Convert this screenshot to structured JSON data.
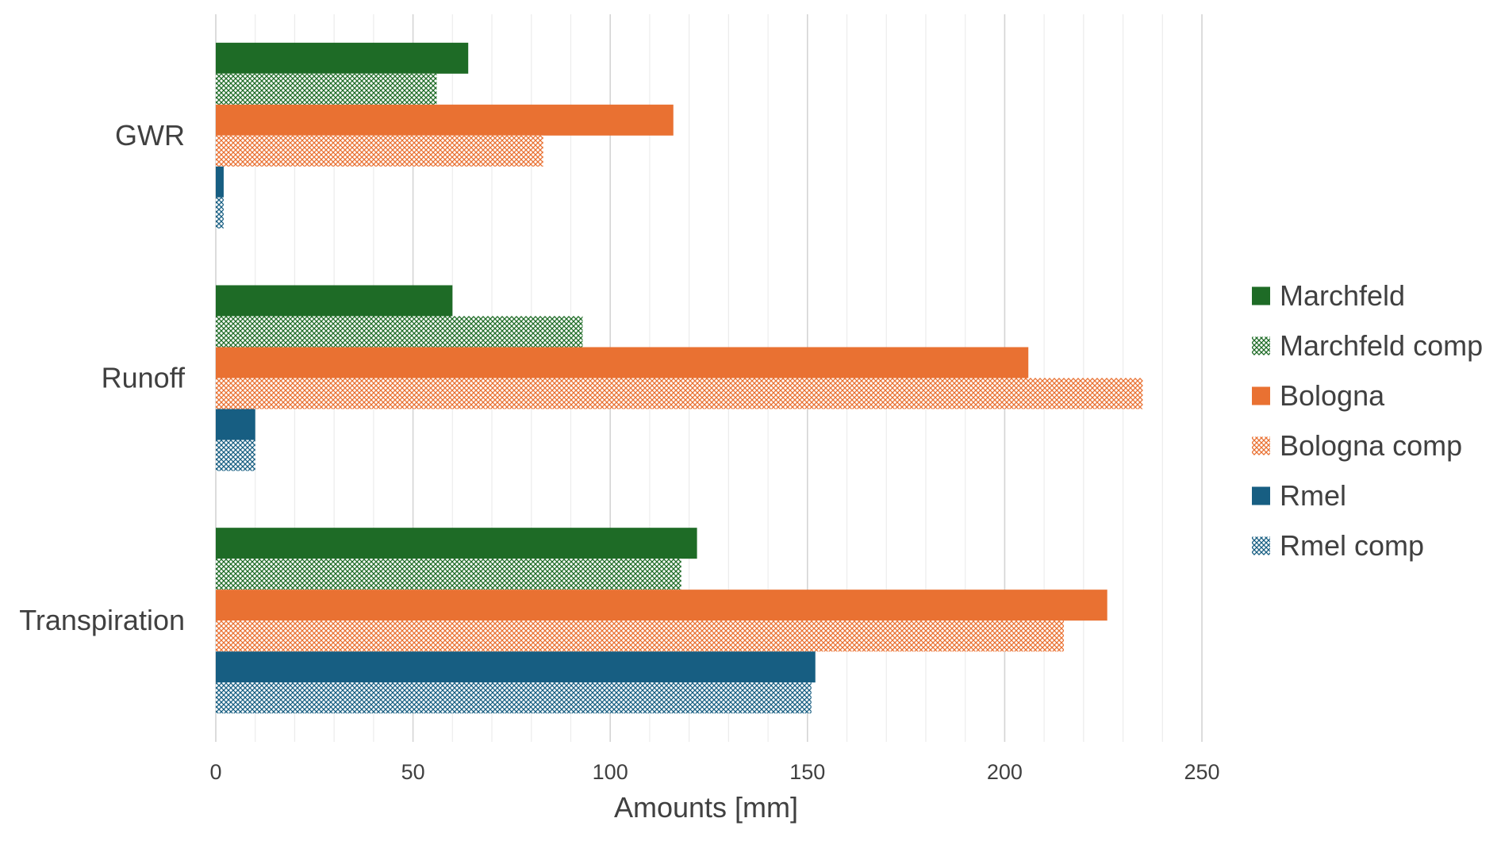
{
  "chart_data": {
    "type": "bar",
    "orientation": "horizontal",
    "categories": [
      "GWR",
      "Runoff",
      "Transpiration"
    ],
    "series": [
      {
        "name": "Marchfeld",
        "values": [
          64,
          60,
          122
        ],
        "color": "#1e6b26",
        "pattern": "solid"
      },
      {
        "name": "Marchfeld comp",
        "values": [
          56,
          93,
          118
        ],
        "color": "#1e6b26",
        "pattern": "hatch"
      },
      {
        "name": "Bologna",
        "values": [
          116,
          206,
          226
        ],
        "color": "#e97132",
        "pattern": "solid"
      },
      {
        "name": "Bologna comp",
        "values": [
          83,
          235,
          215
        ],
        "color": "#e97132",
        "pattern": "hatch"
      },
      {
        "name": "Rmel",
        "values": [
          2,
          10,
          152
        ],
        "color": "#175e82",
        "pattern": "solid"
      },
      {
        "name": "Rmel comp",
        "values": [
          2,
          10,
          151
        ],
        "color": "#175e82",
        "pattern": "hatch"
      }
    ],
    "xlabel": "Amounts [mm]",
    "ylabel": "",
    "xlim": [
      0,
      250
    ],
    "xticks": [
      0,
      50,
      100,
      150,
      200,
      250
    ],
    "minor_gridline_step": 10,
    "grid": true,
    "legend_position": "right"
  }
}
